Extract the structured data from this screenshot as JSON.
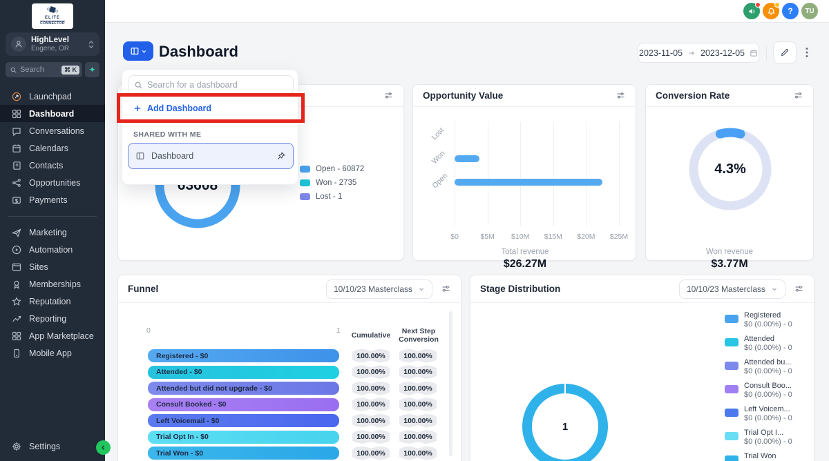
{
  "sidebar": {
    "logo": {
      "line1": "ELITE",
      "line2": "CONNECTOR"
    },
    "account": {
      "name": "HighLevel",
      "location": "Eugene, OR"
    },
    "search": {
      "placeholder": "Search",
      "shortcut": "⌘ K"
    },
    "nav_primary": [
      {
        "id": "launchpad",
        "label": "Launchpad"
      },
      {
        "id": "dashboard",
        "label": "Dashboard",
        "active": true
      },
      {
        "id": "conversations",
        "label": "Conversations"
      },
      {
        "id": "calendars",
        "label": "Calendars"
      },
      {
        "id": "contacts",
        "label": "Contacts"
      },
      {
        "id": "opportunities",
        "label": "Opportunities"
      },
      {
        "id": "payments",
        "label": "Payments"
      }
    ],
    "nav_secondary": [
      {
        "id": "marketing",
        "label": "Marketing"
      },
      {
        "id": "automation",
        "label": "Automation"
      },
      {
        "id": "sites",
        "label": "Sites"
      },
      {
        "id": "memberships",
        "label": "Memberships"
      },
      {
        "id": "reputation",
        "label": "Reputation"
      },
      {
        "id": "reporting",
        "label": "Reporting"
      },
      {
        "id": "app-marketplace",
        "label": "App Marketplace"
      },
      {
        "id": "mobile-app",
        "label": "Mobile App"
      }
    ],
    "settings_label": "Settings"
  },
  "topbar": {
    "avatar_initials": "TU",
    "colors": {
      "announce": "#2f9e6e",
      "bell": "#f79009",
      "help": "#2d7ff9",
      "avatar": "#90ae7c",
      "badge_red": "#ef4444",
      "badge_yellow": "#fbbf24"
    }
  },
  "header": {
    "title": "Dashboard",
    "date_start": "2023-11-05",
    "date_end": "2023-12-05"
  },
  "dropdown": {
    "search_placeholder": "Search for a dashboard",
    "add_label": "Add Dashboard",
    "section_label": "SHARED WITH ME",
    "item_label": "Dashboard"
  },
  "cards": {
    "status": {
      "center_value": "63608",
      "ring_color": "#4aa3ef",
      "legend": [
        {
          "label": "Open - 60872",
          "color": "#4aa3ef"
        },
        {
          "label": "Won - 2735",
          "color": "#1fc5d8"
        },
        {
          "label": "Lost - 1",
          "color": "#7c86ea"
        }
      ]
    },
    "opportunity_value": {
      "title": "Opportunity Value",
      "categories": [
        "Lost",
        "Won",
        "Open"
      ],
      "values_musd": [
        0,
        3.77,
        22.5
      ],
      "axis_max_musd": 25,
      "ticks": [
        "$0",
        "$5M",
        "$10M",
        "$15M",
        "$20M",
        "$25M"
      ],
      "bar_color": "#53aaf0",
      "total_label": "Total revenue",
      "total_value": "$26.27M"
    },
    "conversion_rate": {
      "title": "Conversion Rate",
      "value": "4.3%",
      "ring_bg": "#dde3f4",
      "ring_fg": "#4aa0f5",
      "sub_label": "Won revenue",
      "sub_value": "$3.77M"
    },
    "funnel": {
      "title": "Funnel",
      "select_value": "10/10/23 Masterclass",
      "scale_min": "0",
      "scale_max": "1",
      "col1": "Cumulative",
      "col2": "Next Step Conversion",
      "rows": [
        {
          "label": "Registered - $0",
          "c1": "#55a9f0",
          "c2": "#3d92ea",
          "cumulative": "100.00%",
          "next": "100.00%"
        },
        {
          "label": "Attended - $0",
          "c1": "#27c2de",
          "c2": "#1fd0e2",
          "cumulative": "100.00%",
          "next": "100.00%"
        },
        {
          "label": "Attended but did not upgrade - $0",
          "c1": "#7f8beb",
          "c2": "#6b77e6",
          "cumulative": "100.00%",
          "next": "100.00%"
        },
        {
          "label": "Consult Booked - $0",
          "c1": "#a981f3",
          "c2": "#9a6ef1",
          "cumulative": "100.00%",
          "next": "100.00%"
        },
        {
          "label": "Left Voicemail - $0",
          "c1": "#5b7bf0",
          "c2": "#4a67ee",
          "cumulative": "100.00%",
          "next": "100.00%"
        },
        {
          "label": "Trial Opt In - $0",
          "c1": "#5cdef3",
          "c2": "#47d3ee",
          "cumulative": "100.00%",
          "next": "100.00%"
        },
        {
          "label": "Trial Won - $0",
          "c1": "#3bb7ec",
          "c2": "#2aa7e7",
          "cumulative": "100.00%",
          "next": "100.00%"
        }
      ]
    },
    "stage": {
      "title": "Stage Distribution",
      "select_value": "10/10/23 Masterclass",
      "center_value": "1",
      "ring_color": "#2fb2ea",
      "legend": [
        {
          "label": "Registered",
          "value": "$0 (0.00%) - 0",
          "color": "#4aa3ef"
        },
        {
          "label": "Attended",
          "value": "$0 (0.00%) - 0",
          "color": "#29c5e3"
        },
        {
          "label": "Attended bu...",
          "value": "$0 (0.00%) - 0",
          "color": "#7d8aec"
        },
        {
          "label": "Consult Boo...",
          "value": "$0 (0.00%) - 0",
          "color": "#a07ff2"
        },
        {
          "label": "Left Voicem...",
          "value": "$0 (0.00%) - 0",
          "color": "#4c79ee"
        },
        {
          "label": "Trial Opt I...",
          "value": "$0 (0.00%) - 0",
          "color": "#69ddf4"
        },
        {
          "label": "Trial Won",
          "value": "$0 (100.00%) - 1",
          "color": "#2fb2ea"
        }
      ]
    }
  },
  "chart_data": [
    {
      "type": "pie",
      "title": "Opportunity status donut",
      "labels": [
        "Open",
        "Won",
        "Lost"
      ],
      "values": [
        60872,
        2735,
        1
      ],
      "center_total": 63608,
      "legend_position": "right"
    },
    {
      "type": "bar",
      "title": "Opportunity Value",
      "orientation": "horizontal",
      "categories": [
        "Lost",
        "Won",
        "Open"
      ],
      "values": [
        0,
        3770000,
        22500000
      ],
      "xlabel": "",
      "ylabel": "",
      "xlim": [
        0,
        25000000
      ],
      "tick_labels": [
        "$0",
        "$5M",
        "$10M",
        "$15M",
        "$20M",
        "$25M"
      ],
      "grid": true,
      "annotation": "Total revenue $26.27M"
    },
    {
      "type": "pie",
      "title": "Conversion Rate gauge",
      "labels": [
        "Won",
        "Rest"
      ],
      "values": [
        4.3,
        95.7
      ],
      "center_label": "4.3%",
      "annotation": "Won revenue $3.77M"
    },
    {
      "type": "bar",
      "title": "Funnel",
      "orientation": "horizontal",
      "categories": [
        "Registered - $0",
        "Attended - $0",
        "Attended but did not upgrade - $0",
        "Consult Booked - $0",
        "Left Voicemail - $0",
        "Trial Opt In - $0",
        "Trial Won - $0"
      ],
      "values": [
        1,
        1,
        1,
        1,
        1,
        1,
        1
      ],
      "xlim": [
        0,
        1
      ],
      "columns": {
        "Cumulative": [
          "100.00%",
          "100.00%",
          "100.00%",
          "100.00%",
          "100.00%",
          "100.00%",
          "100.00%"
        ],
        "Next Step Conversion": [
          "100.00%",
          "100.00%",
          "100.00%",
          "100.00%",
          "100.00%",
          "100.00%",
          "100.00%"
        ]
      }
    },
    {
      "type": "pie",
      "title": "Stage Distribution",
      "labels": [
        "Registered",
        "Attended",
        "Attended bu...",
        "Consult Boo...",
        "Left Voicem...",
        "Trial Opt I...",
        "Trial Won"
      ],
      "values": [
        0,
        0,
        0,
        0,
        0,
        0,
        1
      ],
      "center_total": 1,
      "legend_position": "right"
    }
  ]
}
